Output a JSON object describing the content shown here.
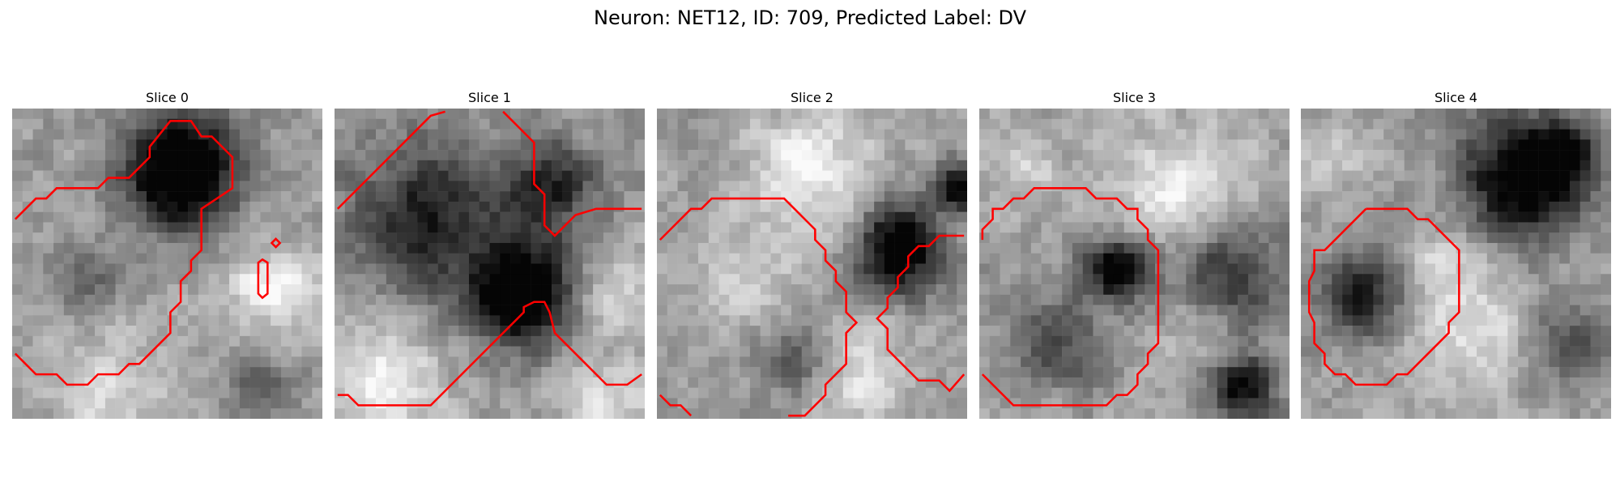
{
  "figure": {
    "title": "Neuron: NET12, ID: 709, Predicted Label: DV"
  },
  "panels": [
    {
      "title": "Slice 0",
      "seed": 11,
      "dark": [
        [
          0.55,
          0.2,
          0.18,
          0.9
        ],
        [
          0.22,
          0.55,
          0.12,
          0.25
        ],
        [
          0.8,
          0.9,
          0.12,
          0.2
        ]
      ],
      "light": [
        [
          0.85,
          0.58,
          0.14,
          0.6
        ],
        [
          0.3,
          0.92,
          0.2,
          0.35
        ]
      ]
    },
    {
      "title": "Slice 1",
      "seed": 23,
      "dark": [
        [
          0.6,
          0.6,
          0.16,
          0.85
        ],
        [
          0.3,
          0.35,
          0.25,
          0.5
        ],
        [
          0.7,
          0.25,
          0.15,
          0.45
        ]
      ],
      "light": [
        [
          0.15,
          0.88,
          0.18,
          0.6
        ],
        [
          0.9,
          0.6,
          0.12,
          0.4
        ],
        [
          0.9,
          0.95,
          0.15,
          0.35
        ]
      ]
    },
    {
      "title": "Slice 2",
      "seed": 37,
      "dark": [
        [
          0.78,
          0.45,
          0.14,
          0.75
        ],
        [
          0.98,
          0.25,
          0.08,
          0.7
        ],
        [
          0.45,
          0.8,
          0.12,
          0.3
        ]
      ],
      "light": [
        [
          0.5,
          0.2,
          0.2,
          0.55
        ],
        [
          0.3,
          0.55,
          0.15,
          0.35
        ],
        [
          0.65,
          0.85,
          0.15,
          0.4
        ]
      ]
    },
    {
      "title": "Slice 3",
      "seed": 41,
      "dark": [
        [
          0.45,
          0.52,
          0.1,
          0.75
        ],
        [
          0.8,
          0.55,
          0.18,
          0.45
        ],
        [
          0.85,
          0.9,
          0.1,
          0.6
        ],
        [
          0.25,
          0.75,
          0.15,
          0.35
        ]
      ],
      "light": [
        [
          0.65,
          0.25,
          0.2,
          0.55
        ],
        [
          0.15,
          0.2,
          0.12,
          0.35
        ],
        [
          0.7,
          0.7,
          0.12,
          0.35
        ]
      ]
    },
    {
      "title": "Slice 4",
      "seed": 53,
      "dark": [
        [
          0.72,
          0.22,
          0.2,
          0.75
        ],
        [
          0.85,
          0.15,
          0.08,
          0.6
        ],
        [
          0.2,
          0.6,
          0.14,
          0.5
        ],
        [
          0.85,
          0.75,
          0.12,
          0.35
        ]
      ],
      "light": [
        [
          0.55,
          0.7,
          0.2,
          0.45
        ],
        [
          0.1,
          0.15,
          0.12,
          0.35
        ],
        [
          0.45,
          0.5,
          0.12,
          0.3
        ]
      ]
    }
  ],
  "colors": {
    "contour": "#ff0000"
  }
}
